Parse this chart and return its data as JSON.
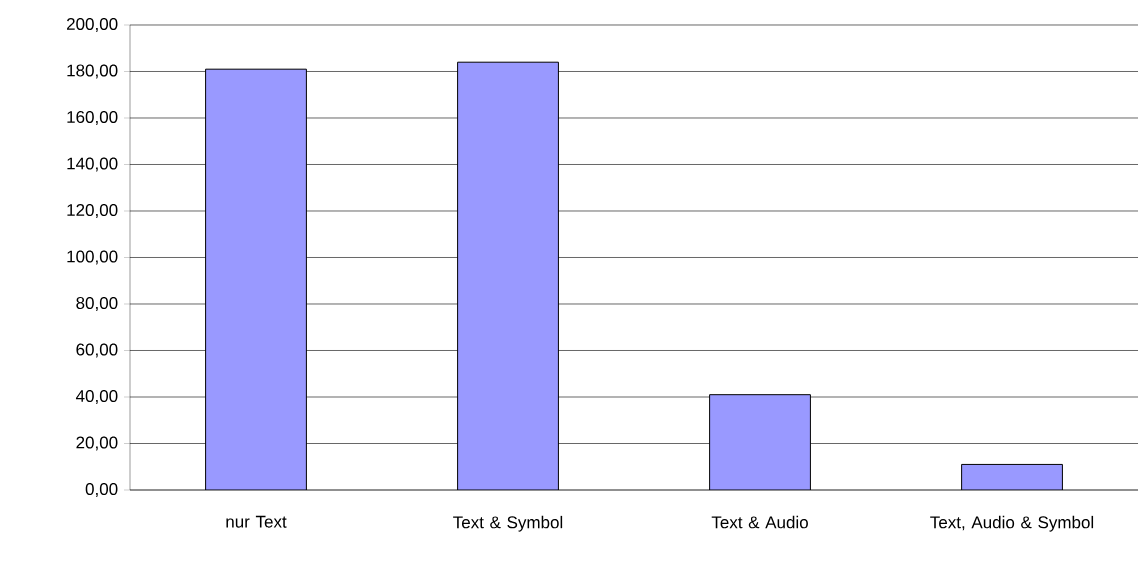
{
  "chart_data": {
    "type": "bar",
    "categories": [
      "nur Text",
      "Text & Symbol",
      "Text & Audio",
      "Text, Audio & Symbol"
    ],
    "values": [
      181,
      184,
      41,
      11
    ],
    "color": "#9999ff",
    "ylim": [
      0,
      200
    ],
    "yticks": [
      {
        "value": 0,
        "label": "0,00"
      },
      {
        "value": 20,
        "label": "20,00"
      },
      {
        "value": 40,
        "label": "40,00"
      },
      {
        "value": 60,
        "label": "60,00"
      },
      {
        "value": 80,
        "label": "80,00"
      },
      {
        "value": 100,
        "label": "100,00"
      },
      {
        "value": 120,
        "label": "120,00"
      },
      {
        "value": 140,
        "label": "140,00"
      },
      {
        "value": 160,
        "label": "160,00"
      },
      {
        "value": 180,
        "label": "180,00"
      },
      {
        "value": 200,
        "label": "200,00"
      }
    ],
    "grid": "y"
  }
}
